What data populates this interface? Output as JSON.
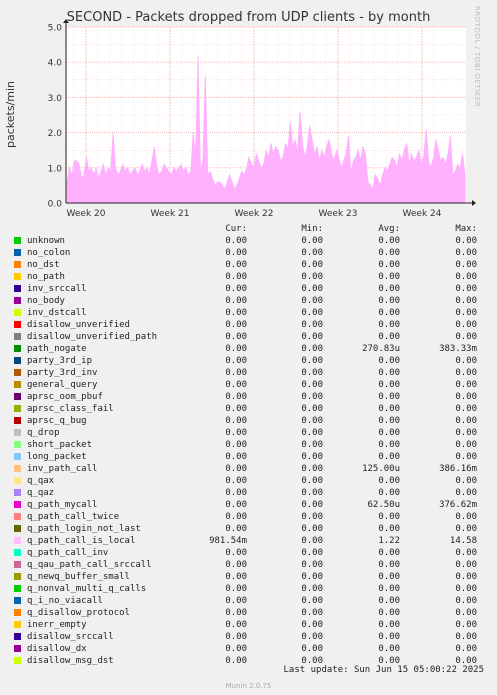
{
  "title": "SECOND - Packets dropped from UDP clients - by month",
  "ylabel": "packets/min",
  "watermark": "RRDTOOL / TOBI OETIKER",
  "chart_data": {
    "type": "area",
    "title": "SECOND - Packets dropped from UDP clients - by month",
    "ylabel": "packets/min",
    "ylim": [
      0,
      5.0
    ],
    "y_ticks": [
      "0.0",
      "1.0",
      "2.0",
      "3.0",
      "4.0",
      "5.0"
    ],
    "x_ticks": [
      "Week 20",
      "Week 21",
      "Week 22",
      "Week 23",
      "Week 24"
    ],
    "grid": true,
    "series": [
      {
        "name": "q_path_call_is_local",
        "color": "#ffb0ff",
        "values": [
          0.6,
          1.0,
          0.8,
          1.2,
          0.9,
          1.1,
          0.7,
          0.8,
          1.3,
          0.9,
          1.0,
          0.8,
          1.0,
          0.7,
          0.9,
          1.1,
          0.8,
          1.0,
          0.9,
          1.2,
          1.0,
          0.8,
          0.9,
          1.1,
          0.9,
          1.0,
          0.8,
          0.9,
          1.0,
          0.8,
          0.9,
          1.1,
          0.9,
          1.0,
          0.8,
          1.2,
          0.9,
          1.0,
          0.8,
          0.9,
          1.1,
          1.0,
          0.9,
          0.8,
          1.0,
          0.9,
          1.0,
          1.1,
          0.9,
          1.0,
          0.8,
          0.9,
          1.0,
          1.3,
          1.0,
          0.9,
          1.2,
          1.0,
          0.8,
          0.9,
          0.7,
          0.5,
          0.6,
          0.7,
          0.5,
          0.4,
          0.6,
          0.8,
          0.6,
          0.4,
          0.5,
          0.7,
          0.9,
          0.8,
          1.0,
          1.2,
          1.1,
          1.0,
          1.4,
          1.2,
          1.0,
          1.1,
          1.5,
          1.3,
          1.2,
          1.4,
          1.6,
          1.5,
          1.2,
          1.3,
          1.7,
          1.5,
          1.4,
          1.6,
          1.8,
          1.4,
          1.5,
          1.7,
          1.3,
          1.6,
          1.5,
          1.8,
          1.4,
          1.6,
          1.2,
          1.5,
          1.3,
          1.6,
          1.1,
          1.4,
          1.2,
          1.5,
          1.3,
          1.0,
          1.2,
          1.4,
          1.1,
          0.9,
          1.2,
          1.3,
          1.5,
          1.2,
          1.1,
          1.4,
          0.6,
          0.5,
          0.4,
          0.6,
          0.7,
          0.5,
          0.8,
          1.0,
          0.9,
          1.1,
          1.3,
          1.2,
          1.0,
          1.4,
          1.2,
          1.5,
          1.3,
          1.1,
          1.4,
          1.2,
          1.3,
          1.5,
          1.1,
          1.3,
          1.4,
          1.2,
          1.0,
          1.3,
          1.4,
          1.5,
          1.2,
          1.3,
          1.1,
          1.4,
          1.2,
          0.8,
          0.9,
          1.1,
          1.0,
          1.2,
          0.8
        ],
        "spikes": [
          [
            4,
            1.2
          ],
          [
            19,
            2.0
          ],
          [
            36,
            1.6
          ],
          [
            52,
            2.0
          ],
          [
            54,
            4.2
          ],
          [
            57,
            3.6
          ],
          [
            63,
            0.6
          ],
          [
            75,
            1.3
          ],
          [
            84,
            1.7
          ],
          [
            92,
            2.3
          ],
          [
            96,
            2.6
          ],
          [
            100,
            2.2
          ],
          [
            108,
            1.8
          ],
          [
            116,
            1.9
          ],
          [
            122,
            1.6
          ],
          [
            127,
            0.8
          ],
          [
            140,
            1.7
          ],
          [
            148,
            2.1
          ],
          [
            152,
            1.8
          ],
          [
            158,
            1.9
          ],
          [
            163,
            1.4
          ]
        ]
      }
    ]
  },
  "legend": {
    "headers": {
      "cur": "Cur:",
      "min": "Min:",
      "avg": "Avg:",
      "max": "Max:"
    },
    "rows": [
      {
        "name": "unknown",
        "color": "#00cc00",
        "cur": "0.00",
        "min": "0.00",
        "avg": "0.00",
        "max": "0.00"
      },
      {
        "name": "no_colon",
        "color": "#0066b3",
        "cur": "0.00",
        "min": "0.00",
        "avg": "0.00",
        "max": "0.00"
      },
      {
        "name": "no_dst",
        "color": "#ff8000",
        "cur": "0.00",
        "min": "0.00",
        "avg": "0.00",
        "max": "0.00"
      },
      {
        "name": "no_path",
        "color": "#ffcc00",
        "cur": "0.00",
        "min": "0.00",
        "avg": "0.00",
        "max": "0.00"
      },
      {
        "name": "inv_srccall",
        "color": "#330099",
        "cur": "0.00",
        "min": "0.00",
        "avg": "0.00",
        "max": "0.00"
      },
      {
        "name": "no_body",
        "color": "#990099",
        "cur": "0.00",
        "min": "0.00",
        "avg": "0.00",
        "max": "0.00"
      },
      {
        "name": "inv_dstcall",
        "color": "#ccff00",
        "cur": "0.00",
        "min": "0.00",
        "avg": "0.00",
        "max": "0.00"
      },
      {
        "name": "disallow_unverified",
        "color": "#ff0000",
        "cur": "0.00",
        "min": "0.00",
        "avg": "0.00",
        "max": "0.00"
      },
      {
        "name": "disallow_unverified_path",
        "color": "#808080",
        "cur": "0.00",
        "min": "0.00",
        "avg": "0.00",
        "max": "0.00"
      },
      {
        "name": "path_nogate",
        "color": "#008f00",
        "cur": "0.00",
        "min": "0.00",
        "avg": "270.83u",
        "max": "383.33m"
      },
      {
        "name": "party_3rd_ip",
        "color": "#00487d",
        "cur": "0.00",
        "min": "0.00",
        "avg": "0.00",
        "max": "0.00"
      },
      {
        "name": "party_3rd_inv",
        "color": "#b35a00",
        "cur": "0.00",
        "min": "0.00",
        "avg": "0.00",
        "max": "0.00"
      },
      {
        "name": "general_query",
        "color": "#b38f00",
        "cur": "0.00",
        "min": "0.00",
        "avg": "0.00",
        "max": "0.00"
      },
      {
        "name": "aprsc_oom_pbuf",
        "color": "#6b006b",
        "cur": "0.00",
        "min": "0.00",
        "avg": "0.00",
        "max": "0.00"
      },
      {
        "name": "aprsc_class_fail",
        "color": "#8fb300",
        "cur": "0.00",
        "min": "0.00",
        "avg": "0.00",
        "max": "0.00"
      },
      {
        "name": "aprsc_q_bug",
        "color": "#b30000",
        "cur": "0.00",
        "min": "0.00",
        "avg": "0.00",
        "max": "0.00"
      },
      {
        "name": "q_drop",
        "color": "#bebebe",
        "cur": "0.00",
        "min": "0.00",
        "avg": "0.00",
        "max": "0.00"
      },
      {
        "name": "short_packet",
        "color": "#80ff80",
        "cur": "0.00",
        "min": "0.00",
        "avg": "0.00",
        "max": "0.00"
      },
      {
        "name": "long_packet",
        "color": "#80c9ff",
        "cur": "0.00",
        "min": "0.00",
        "avg": "0.00",
        "max": "0.00"
      },
      {
        "name": "inv_path_call",
        "color": "#ffc080",
        "cur": "0.00",
        "min": "0.00",
        "avg": "125.00u",
        "max": "386.16m"
      },
      {
        "name": "q_qax",
        "color": "#ffe680",
        "cur": "0.00",
        "min": "0.00",
        "avg": "0.00",
        "max": "0.00"
      },
      {
        "name": "q_qaz",
        "color": "#aa80ff",
        "cur": "0.00",
        "min": "0.00",
        "avg": "0.00",
        "max": "0.00"
      },
      {
        "name": "q_path_mycall",
        "color": "#ee00cc",
        "cur": "0.00",
        "min": "0.00",
        "avg": "62.50u",
        "max": "376.62m"
      },
      {
        "name": "q_path_call_twice",
        "color": "#ff8080",
        "cur": "0.00",
        "min": "0.00",
        "avg": "0.00",
        "max": "0.00"
      },
      {
        "name": "q_path_login_not_last",
        "color": "#666600",
        "cur": "0.00",
        "min": "0.00",
        "avg": "0.00",
        "max": "0.00"
      },
      {
        "name": "q_path_call_is_local",
        "color": "#ffbfff",
        "cur": "981.54m",
        "min": "0.00",
        "avg": "1.22",
        "max": "14.58"
      },
      {
        "name": "q_path_call_inv",
        "color": "#00ffcc",
        "cur": "0.00",
        "min": "0.00",
        "avg": "0.00",
        "max": "0.00"
      },
      {
        "name": "q_qau_path_call_srccall",
        "color": "#cc6699",
        "cur": "0.00",
        "min": "0.00",
        "avg": "0.00",
        "max": "0.00"
      },
      {
        "name": "q_newq_buffer_small",
        "color": "#999900",
        "cur": "0.00",
        "min": "0.00",
        "avg": "0.00",
        "max": "0.00"
      },
      {
        "name": "q_nonval_multi_q_calls",
        "color": "#00cc00",
        "cur": "0.00",
        "min": "0.00",
        "avg": "0.00",
        "max": "0.00"
      },
      {
        "name": "q_i_no_viacall",
        "color": "#0066b3",
        "cur": "0.00",
        "min": "0.00",
        "avg": "0.00",
        "max": "0.00"
      },
      {
        "name": "q_disallow_protocol",
        "color": "#ff8000",
        "cur": "0.00",
        "min": "0.00",
        "avg": "0.00",
        "max": "0.00"
      },
      {
        "name": "inerr_empty",
        "color": "#ffcc00",
        "cur": "0.00",
        "min": "0.00",
        "avg": "0.00",
        "max": "0.00"
      },
      {
        "name": "disallow_srccall",
        "color": "#330099",
        "cur": "0.00",
        "min": "0.00",
        "avg": "0.00",
        "max": "0.00"
      },
      {
        "name": "disallow_dx",
        "color": "#990099",
        "cur": "0.00",
        "min": "0.00",
        "avg": "0.00",
        "max": "0.00"
      },
      {
        "name": "disallow_msg_dst",
        "color": "#ccff00",
        "cur": "0.00",
        "min": "0.00",
        "avg": "0.00",
        "max": "0.00"
      }
    ]
  },
  "footer": "Last update: Sun Jun 15 05:00:22 2025",
  "munin": "Munin 2.0.75"
}
